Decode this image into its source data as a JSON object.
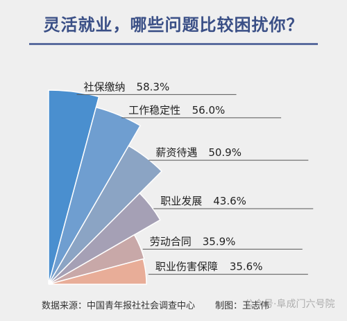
{
  "title": "灵活就业，哪些问题比较困扰你？",
  "chart_data": {
    "type": "bar",
    "title": "灵活就业，哪些问题比较困扰你？",
    "categories": [
      "社保缴纳",
      "工作稳定性",
      "薪资待遇",
      "职业发展",
      "劳动合同",
      "职业伤害保障"
    ],
    "values": [
      58.3,
      56.0,
      50.9,
      43.6,
      35.9,
      35.6
    ],
    "value_labels": [
      "58.3%",
      "56.0%",
      "50.9%",
      "43.6%",
      "35.9%",
      "35.6%"
    ],
    "colors": [
      "#4a8fcf",
      "#6f9ed0",
      "#8ba4c4",
      "#a5a0b5",
      "#c8a8a8",
      "#e8ad98"
    ],
    "unit": "%",
    "legend": "none",
    "grid": false
  },
  "footer": {
    "source": "数据来源：中国青年报社社会调查中心",
    "credit": "制图：王志伟"
  },
  "watermark": "公众号·阜成门六号院"
}
